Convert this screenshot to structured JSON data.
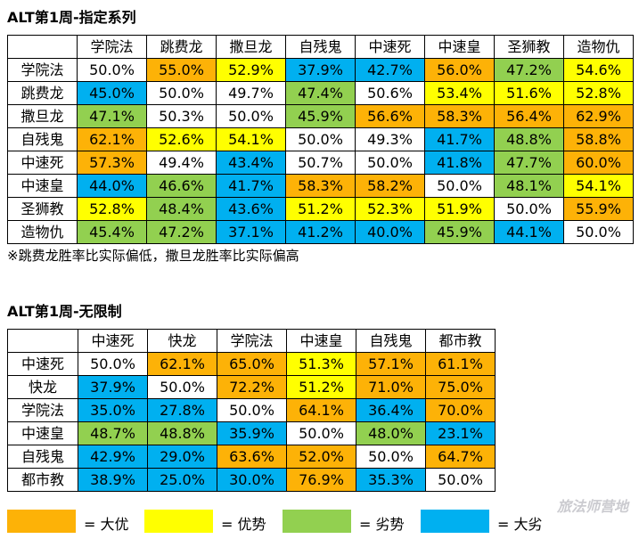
{
  "colors": {
    "big_adv": "#fdb207",
    "adv": "#ffff00",
    "disadv": "#92d050",
    "big_disadv": "#00b0f0",
    "neutral": "#ffffff"
  },
  "table1": {
    "title": "ALT第1周-指定系列",
    "columns": [
      "学院法",
      "跳费龙",
      "撒旦龙",
      "自残鬼",
      "中速死",
      "中速皇",
      "圣狮教",
      "造物仇"
    ],
    "rows": [
      {
        "label": "学院法",
        "cells": [
          {
            "v": "50.0%",
            "c": "neutral"
          },
          {
            "v": "55.0%",
            "c": "big_adv"
          },
          {
            "v": "52.9%",
            "c": "adv"
          },
          {
            "v": "37.9%",
            "c": "big_disadv"
          },
          {
            "v": "42.7%",
            "c": "big_disadv"
          },
          {
            "v": "56.0%",
            "c": "big_adv"
          },
          {
            "v": "47.2%",
            "c": "disadv"
          },
          {
            "v": "54.6%",
            "c": "adv"
          }
        ]
      },
      {
        "label": "跳费龙",
        "cells": [
          {
            "v": "45.0%",
            "c": "big_disadv"
          },
          {
            "v": "50.0%",
            "c": "neutral"
          },
          {
            "v": "49.7%",
            "c": "neutral"
          },
          {
            "v": "47.4%",
            "c": "disadv"
          },
          {
            "v": "50.6%",
            "c": "neutral"
          },
          {
            "v": "53.4%",
            "c": "adv"
          },
          {
            "v": "51.6%",
            "c": "adv"
          },
          {
            "v": "52.8%",
            "c": "adv"
          }
        ]
      },
      {
        "label": "撒旦龙",
        "cells": [
          {
            "v": "47.1%",
            "c": "disadv"
          },
          {
            "v": "50.3%",
            "c": "neutral"
          },
          {
            "v": "50.0%",
            "c": "neutral"
          },
          {
            "v": "45.9%",
            "c": "disadv"
          },
          {
            "v": "56.6%",
            "c": "big_adv"
          },
          {
            "v": "58.3%",
            "c": "big_adv"
          },
          {
            "v": "56.4%",
            "c": "big_adv"
          },
          {
            "v": "62.9%",
            "c": "big_adv"
          }
        ]
      },
      {
        "label": "自残鬼",
        "cells": [
          {
            "v": "62.1%",
            "c": "big_adv"
          },
          {
            "v": "52.6%",
            "c": "adv"
          },
          {
            "v": "54.1%",
            "c": "adv"
          },
          {
            "v": "50.0%",
            "c": "neutral"
          },
          {
            "v": "49.3%",
            "c": "neutral"
          },
          {
            "v": "41.7%",
            "c": "big_disadv"
          },
          {
            "v": "48.8%",
            "c": "disadv"
          },
          {
            "v": "58.8%",
            "c": "big_adv"
          }
        ]
      },
      {
        "label": "中速死",
        "cells": [
          {
            "v": "57.3%",
            "c": "big_adv"
          },
          {
            "v": "49.4%",
            "c": "neutral"
          },
          {
            "v": "43.4%",
            "c": "big_disadv"
          },
          {
            "v": "50.7%",
            "c": "neutral"
          },
          {
            "v": "50.0%",
            "c": "neutral"
          },
          {
            "v": "41.8%",
            "c": "big_disadv"
          },
          {
            "v": "47.7%",
            "c": "disadv"
          },
          {
            "v": "60.0%",
            "c": "big_adv"
          }
        ]
      },
      {
        "label": "中速皇",
        "cells": [
          {
            "v": "44.0%",
            "c": "big_disadv"
          },
          {
            "v": "46.6%",
            "c": "disadv"
          },
          {
            "v": "41.7%",
            "c": "big_disadv"
          },
          {
            "v": "58.3%",
            "c": "big_adv"
          },
          {
            "v": "58.2%",
            "c": "big_adv"
          },
          {
            "v": "50.0%",
            "c": "neutral"
          },
          {
            "v": "48.1%",
            "c": "disadv"
          },
          {
            "v": "54.1%",
            "c": "adv"
          }
        ]
      },
      {
        "label": "圣狮教",
        "cells": [
          {
            "v": "52.8%",
            "c": "adv"
          },
          {
            "v": "48.4%",
            "c": "disadv"
          },
          {
            "v": "43.6%",
            "c": "big_disadv"
          },
          {
            "v": "51.2%",
            "c": "adv"
          },
          {
            "v": "52.3%",
            "c": "adv"
          },
          {
            "v": "51.9%",
            "c": "adv"
          },
          {
            "v": "50.0%",
            "c": "neutral"
          },
          {
            "v": "55.9%",
            "c": "big_adv"
          }
        ]
      },
      {
        "label": "造物仇",
        "cells": [
          {
            "v": "45.4%",
            "c": "disadv"
          },
          {
            "v": "47.2%",
            "c": "disadv"
          },
          {
            "v": "37.1%",
            "c": "big_disadv"
          },
          {
            "v": "41.2%",
            "c": "big_disadv"
          },
          {
            "v": "40.0%",
            "c": "big_disadv"
          },
          {
            "v": "45.9%",
            "c": "disadv"
          },
          {
            "v": "44.1%",
            "c": "big_disadv"
          },
          {
            "v": "50.0%",
            "c": "neutral"
          }
        ]
      }
    ],
    "note": "※跳费龙胜率比实际偏低，撒旦龙胜率比实际偏高"
  },
  "table2": {
    "title": "ALT第1周-无限制",
    "columns": [
      "中速死",
      "快龙",
      "学院法",
      "中速皇",
      "自残鬼",
      "都市教"
    ],
    "rows": [
      {
        "label": "中速死",
        "cells": [
          {
            "v": "50.0%",
            "c": "neutral"
          },
          {
            "v": "62.1%",
            "c": "big_adv"
          },
          {
            "v": "65.0%",
            "c": "big_adv"
          },
          {
            "v": "51.3%",
            "c": "adv"
          },
          {
            "v": "57.1%",
            "c": "big_adv"
          },
          {
            "v": "61.1%",
            "c": "big_adv"
          }
        ]
      },
      {
        "label": "快龙",
        "cells": [
          {
            "v": "37.9%",
            "c": "big_disadv"
          },
          {
            "v": "50.0%",
            "c": "neutral"
          },
          {
            "v": "72.2%",
            "c": "big_adv"
          },
          {
            "v": "51.2%",
            "c": "adv"
          },
          {
            "v": "71.0%",
            "c": "big_adv"
          },
          {
            "v": "75.0%",
            "c": "big_adv"
          }
        ]
      },
      {
        "label": "学院法",
        "cells": [
          {
            "v": "35.0%",
            "c": "big_disadv"
          },
          {
            "v": "27.8%",
            "c": "big_disadv"
          },
          {
            "v": "50.0%",
            "c": "neutral"
          },
          {
            "v": "64.1%",
            "c": "big_adv"
          },
          {
            "v": "36.4%",
            "c": "big_disadv"
          },
          {
            "v": "70.0%",
            "c": "big_adv"
          }
        ]
      },
      {
        "label": "中速皇",
        "cells": [
          {
            "v": "48.7%",
            "c": "disadv"
          },
          {
            "v": "48.8%",
            "c": "disadv"
          },
          {
            "v": "35.9%",
            "c": "big_disadv"
          },
          {
            "v": "50.0%",
            "c": "neutral"
          },
          {
            "v": "48.0%",
            "c": "disadv"
          },
          {
            "v": "23.1%",
            "c": "big_disadv"
          }
        ]
      },
      {
        "label": "自残鬼",
        "cells": [
          {
            "v": "42.9%",
            "c": "big_disadv"
          },
          {
            "v": "29.0%",
            "c": "big_disadv"
          },
          {
            "v": "63.6%",
            "c": "big_adv"
          },
          {
            "v": "52.0%",
            "c": "big_adv"
          },
          {
            "v": "50.0%",
            "c": "neutral"
          },
          {
            "v": "64.7%",
            "c": "big_adv"
          }
        ]
      },
      {
        "label": "都市教",
        "cells": [
          {
            "v": "38.9%",
            "c": "big_disadv"
          },
          {
            "v": "25.0%",
            "c": "big_disadv"
          },
          {
            "v": "30.0%",
            "c": "big_disadv"
          },
          {
            "v": "76.9%",
            "c": "big_adv"
          },
          {
            "v": "35.3%",
            "c": "big_disadv"
          },
          {
            "v": "50.0%",
            "c": "neutral"
          }
        ]
      }
    ]
  },
  "legend": [
    {
      "c": "big_adv",
      "label": "= 大优"
    },
    {
      "c": "adv",
      "label": "= 优势"
    },
    {
      "c": "disadv",
      "label": "= 劣势"
    },
    {
      "c": "big_disadv",
      "label": "= 大劣"
    }
  ],
  "watermark": "旅法师营地"
}
